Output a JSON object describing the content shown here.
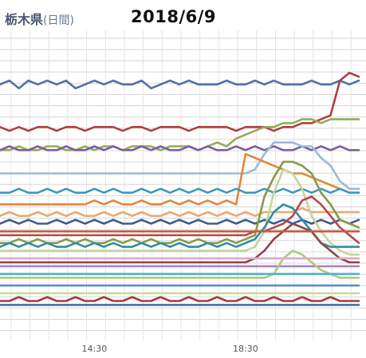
{
  "header": {
    "region": "栃木県",
    "period": "(日間)",
    "date": "2018/6/9"
  },
  "chart_data": {
    "type": "line",
    "x": [
      "12:00",
      "12:15",
      "12:30",
      "12:45",
      "13:00",
      "13:15",
      "13:30",
      "13:45",
      "14:00",
      "14:15",
      "14:30",
      "14:45",
      "15:00",
      "15:15",
      "15:30",
      "15:45",
      "16:00",
      "16:15",
      "16:30",
      "16:45",
      "17:00",
      "17:15",
      "17:30",
      "17:45",
      "18:00",
      "18:15",
      "18:30",
      "18:45",
      "19:00",
      "19:15",
      "19:30",
      "19:45",
      "20:00",
      "20:15",
      "20:30",
      "20:45",
      "21:00",
      "21:15",
      "21:30"
    ],
    "xtick_labels": [
      "14:30",
      "18:30"
    ],
    "grid": true,
    "series": [
      {
        "color": "#4e72a8",
        "values": [
          96,
          97,
          95,
          97,
          96,
          97,
          96,
          97,
          95,
          96,
          97,
          96,
          97,
          96,
          96,
          97,
          95,
          96,
          97,
          96,
          97,
          96,
          96,
          96,
          97,
          96,
          96,
          97,
          96,
          97,
          96,
          96,
          96,
          97,
          96,
          96,
          97,
          96,
          97
        ]
      },
      {
        "color": "#b0403f",
        "values": [
          85,
          84,
          85,
          84,
          85,
          85,
          84,
          85,
          85,
          84,
          85,
          85,
          85,
          84,
          85,
          85,
          84,
          85,
          85,
          85,
          84,
          85,
          85,
          85,
          85,
          84,
          85,
          85,
          85,
          84,
          85,
          85,
          86,
          86,
          87,
          88,
          97,
          99,
          98
        ]
      },
      {
        "color": "#92ad56",
        "values": [
          79,
          79,
          80,
          79,
          79,
          80,
          80,
          79,
          79,
          80,
          79,
          80,
          80,
          79,
          80,
          80,
          80,
          79,
          80,
          80,
          80,
          79,
          80,
          81,
          80,
          82,
          83,
          84,
          85,
          85,
          86,
          86,
          87,
          87,
          86,
          87,
          87,
          87,
          87
        ]
      },
      {
        "color": "#7d5f9c",
        "values": [
          79,
          80,
          79,
          79,
          80,
          79,
          79,
          80,
          79,
          79,
          80,
          79,
          80,
          79,
          79,
          80,
          79,
          80,
          79,
          79,
          80,
          79,
          80,
          79,
          79,
          80,
          79,
          80,
          79,
          80,
          79,
          79,
          80,
          79,
          80,
          79,
          80,
          79,
          79
        ]
      },
      {
        "color": "#9db8da",
        "values": [
          73,
          73,
          73,
          73,
          73,
          73,
          73,
          73,
          73,
          73,
          73,
          73,
          73,
          73,
          73,
          73,
          73,
          73,
          73,
          73,
          73,
          73,
          73,
          73,
          73,
          73,
          73,
          74,
          78,
          81,
          81,
          81,
          80,
          80,
          77,
          75,
          71,
          69,
          69
        ]
      },
      {
        "color": "#e0883c",
        "values": [
          65,
          65,
          65,
          65,
          65,
          65,
          65,
          65,
          65,
          65,
          66,
          65,
          66,
          65,
          65,
          66,
          65,
          65,
          66,
          65,
          66,
          65,
          66,
          65,
          66,
          65,
          78,
          77,
          76,
          75,
          74,
          73,
          73,
          72,
          71,
          70,
          69,
          68,
          68
        ]
      },
      {
        "color": "#3e98b6",
        "values": [
          68,
          68,
          69,
          68,
          68,
          69,
          68,
          69,
          68,
          68,
          69,
          68,
          69,
          68,
          68,
          69,
          68,
          69,
          68,
          69,
          68,
          69,
          68,
          69,
          68,
          69,
          68,
          68,
          69,
          68,
          69,
          68,
          69,
          68,
          69,
          68,
          69,
          68,
          68
        ]
      },
      {
        "color": "#e9a873",
        "values": [
          62,
          63,
          62,
          62,
          63,
          62,
          63,
          62,
          63,
          62,
          62,
          63,
          62,
          63,
          62,
          63,
          62,
          62,
          63,
          62,
          63,
          62,
          63,
          62,
          63,
          62,
          63,
          62,
          63,
          63,
          63,
          63,
          64,
          63,
          63,
          63,
          63,
          63,
          63
        ]
      },
      {
        "color": "#3d5d8c",
        "values": [
          60,
          61,
          60,
          61,
          60,
          60,
          61,
          60,
          61,
          60,
          61,
          60,
          61,
          60,
          60,
          61,
          60,
          61,
          60,
          61,
          60,
          61,
          60,
          60,
          61,
          60,
          61,
          60,
          61,
          60,
          61,
          60,
          61,
          60,
          61,
          60,
          61,
          60,
          61
        ]
      },
      {
        "color": "#869a4a",
        "values": [
          55,
          55,
          56,
          55,
          56,
          55,
          55,
          56,
          55,
          56,
          55,
          55,
          56,
          55,
          56,
          55,
          56,
          55,
          55,
          56,
          55,
          56,
          55,
          55,
          56,
          55,
          56,
          57,
          67,
          72,
          76,
          76,
          75,
          73,
          68,
          65,
          61,
          60,
          59
        ]
      },
      {
        "color": "#c5d49a",
        "values": [
          53,
          53,
          53,
          53,
          53,
          53,
          53,
          53,
          53,
          53,
          53,
          53,
          53,
          53,
          53,
          53,
          53,
          53,
          53,
          53,
          53,
          53,
          53,
          53,
          53,
          53,
          53,
          54,
          58,
          68,
          74,
          73,
          69,
          62,
          58,
          55,
          53,
          52,
          52
        ]
      },
      {
        "color": "#b5494a",
        "values": [
          57,
          57,
          57,
          57,
          57,
          57,
          57,
          57,
          57,
          57,
          57,
          57,
          57,
          57,
          57,
          57,
          57,
          57,
          57,
          57,
          57,
          57,
          57,
          57,
          57,
          57,
          57,
          58,
          58,
          59,
          60,
          62,
          66,
          67,
          65,
          62,
          59,
          57,
          55
        ]
      },
      {
        "color": "#2d8ea3",
        "values": [
          54,
          55,
          54,
          55,
          54,
          55,
          54,
          54,
          55,
          54,
          55,
          54,
          55,
          54,
          54,
          55,
          54,
          55,
          54,
          55,
          54,
          54,
          55,
          54,
          55,
          54,
          55,
          56,
          59,
          63,
          65,
          64,
          61,
          58,
          55,
          54,
          54,
          54,
          54
        ]
      },
      {
        "color": "#8e4543",
        "values": [
          50,
          50,
          50,
          50,
          50,
          50,
          50,
          50,
          50,
          50,
          50,
          50,
          50,
          50,
          50,
          50,
          50,
          50,
          50,
          50,
          50,
          50,
          50,
          50,
          50,
          50,
          50,
          51,
          53,
          56,
          58,
          60,
          59,
          58,
          55,
          53,
          51,
          50,
          50
        ]
      },
      {
        "color": "#a585c5",
        "values": [
          49,
          49,
          49,
          49,
          49,
          49,
          49,
          49,
          49,
          49,
          49,
          49,
          49,
          49,
          49,
          49,
          49,
          49,
          49,
          49,
          49,
          49,
          49,
          49,
          49,
          49,
          49,
          49,
          49,
          49,
          49,
          49,
          49,
          49,
          49,
          49,
          49,
          49,
          49
        ]
      },
      {
        "color": "#b0c87a",
        "values": [
          46,
          46,
          46,
          46,
          46,
          46,
          46,
          46,
          46,
          46,
          46,
          46,
          46,
          46,
          46,
          46,
          46,
          46,
          46,
          46,
          46,
          46,
          46,
          46,
          46,
          46,
          46,
          46,
          46,
          47,
          51,
          53,
          52,
          50,
          48,
          47,
          46,
          46,
          46
        ]
      },
      {
        "color": "#4fb3c9",
        "values": [
          47,
          47,
          47,
          47,
          47,
          47,
          47,
          47,
          47,
          47,
          47,
          47,
          47,
          47,
          47,
          47,
          47,
          47,
          47,
          47,
          47,
          47,
          47,
          47,
          47,
          47,
          47,
          47,
          47,
          47,
          47,
          47,
          47,
          47,
          47,
          47,
          47,
          47,
          47
        ]
      },
      {
        "color": "#c75b3a",
        "values": [
          58,
          58,
          58,
          58,
          58,
          58,
          58,
          58,
          58,
          58,
          58,
          58,
          58,
          58,
          58,
          58,
          58,
          58,
          58,
          58,
          58,
          58,
          58,
          58,
          58,
          58,
          58,
          58,
          58,
          58,
          58,
          58,
          58,
          58,
          58,
          58,
          58,
          58,
          58
        ]
      },
      {
        "color": "#5a8fc8",
        "values": [
          44,
          44,
          44,
          44,
          44,
          44,
          44,
          44,
          44,
          44,
          44,
          44,
          44,
          44,
          44,
          44,
          44,
          44,
          44,
          44,
          44,
          44,
          44,
          44,
          44,
          44,
          44,
          44,
          44,
          44,
          44,
          44,
          44,
          44,
          44,
          44,
          44,
          44,
          44
        ]
      },
      {
        "color": "#d9a9c9",
        "values": [
          51,
          51,
          51,
          51,
          51,
          51,
          51,
          51,
          51,
          51,
          51,
          51,
          51,
          51,
          51,
          51,
          51,
          51,
          51,
          51,
          51,
          51,
          51,
          51,
          51,
          51,
          51,
          51,
          51,
          51,
          51,
          51,
          51,
          51,
          51,
          51,
          51,
          51,
          51
        ]
      },
      {
        "color": "#c8dc9c",
        "values": [
          42,
          42,
          42,
          42,
          42,
          42,
          42,
          42,
          42,
          42,
          42,
          42,
          42,
          42,
          42,
          42,
          42,
          42,
          42,
          42,
          42,
          42,
          42,
          42,
          42,
          42,
          42,
          42,
          42,
          42,
          42,
          42,
          42,
          42,
          42,
          42,
          42,
          42,
          42
        ]
      },
      {
        "color": "#a63a3a",
        "values": [
          40,
          40,
          41,
          40,
          40,
          41,
          40,
          40,
          41,
          40,
          40,
          41,
          40,
          40,
          41,
          40,
          40,
          41,
          40,
          40,
          41,
          40,
          40,
          41,
          40,
          40,
          41,
          40,
          40,
          41,
          40,
          40,
          41,
          40,
          40,
          41,
          40,
          40,
          40
        ]
      },
      {
        "color": "#4a6fa5",
        "values": [
          39,
          39,
          39,
          39,
          39,
          39,
          39,
          39,
          39,
          39,
          39,
          39,
          39,
          39,
          39,
          39,
          39,
          39,
          39,
          39,
          39,
          39,
          39,
          39,
          39,
          39,
          39,
          39,
          39,
          39,
          39,
          39,
          39,
          39,
          39,
          39,
          39,
          39,
          39
        ]
      }
    ]
  }
}
